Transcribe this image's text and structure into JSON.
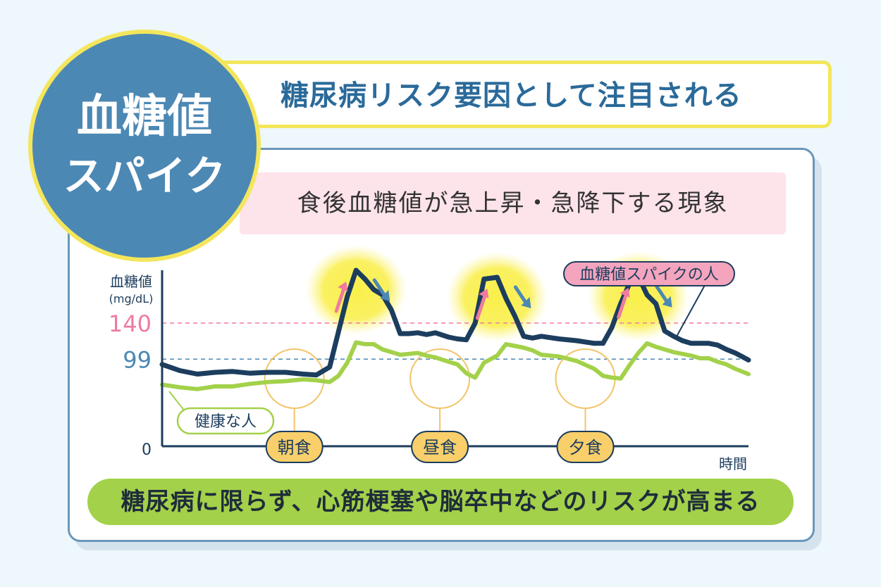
{
  "badge": {
    "line1": "血糖値",
    "line2": "スパイク"
  },
  "headline": "糖尿病リスク要因として注目される",
  "subtitle": "食後血糖値が急上昇・急降下する現象",
  "footer": "糖尿病に限らず、心筋梗塞や脳卒中などのリスクが高まる",
  "colors": {
    "spike_line": "#1c3d5e",
    "healthy_line": "#a3d14a",
    "threshold_140": "#f07aa0",
    "threshold_99": "#4c88b4",
    "highlight": "#f9f04a",
    "meal_circle": "#f2c469",
    "meal_label_bg": "#f8cf6a"
  },
  "chart_data": {
    "type": "line",
    "ylabel": "血糖値",
    "ylabel_unit": "(mg/dL)",
    "xlabel": "時間",
    "y_ticks": [
      {
        "value": 0,
        "label": "0"
      },
      {
        "value": 99,
        "label": "99"
      },
      {
        "value": 140,
        "label": "140"
      }
    ],
    "thresholds": [
      {
        "value": 140,
        "color": "#f07aa0"
      },
      {
        "value": 99,
        "color": "#4c88b4"
      }
    ],
    "meals": [
      {
        "label": "朝食",
        "x": 30
      },
      {
        "label": "昼食",
        "x": 63
      },
      {
        "label": "夕食",
        "x": 96
      }
    ],
    "series": [
      {
        "name": "血糖値スパイクの人",
        "color": "#1c3d5e",
        "x": [
          0,
          4,
          8,
          12,
          16,
          20,
          24,
          28,
          32,
          35,
          38,
          40,
          42,
          44,
          46,
          48,
          50,
          52,
          54,
          56,
          58,
          60,
          62,
          65,
          67,
          69,
          71,
          73,
          76,
          78,
          80,
          82,
          84,
          86,
          90,
          94,
          98,
          100,
          102,
          104,
          106,
          108,
          110,
          112,
          114,
          116,
          118,
          120,
          122,
          124,
          126,
          128,
          130,
          133
        ],
        "y": [
          93,
          86,
          82,
          84,
          85,
          83,
          84,
          84,
          82,
          81,
          90,
          130,
          170,
          200,
          190,
          178,
          172,
          155,
          128,
          128,
          129,
          127,
          129,
          124,
          122,
          121,
          140,
          190,
          192,
          168,
          148,
          125,
          123,
          125,
          122,
          120,
          117,
          117,
          135,
          162,
          185,
          193,
          172,
          162,
          131,
          125,
          120,
          117,
          117,
          117,
          115,
          110,
          106,
          98
        ]
      },
      {
        "name": "健康な人",
        "color": "#a3d14a",
        "x": [
          0,
          4,
          8,
          12,
          16,
          20,
          24,
          28,
          32,
          35,
          38,
          40,
          42,
          44,
          46,
          48,
          50,
          52,
          54,
          56,
          58,
          60,
          62,
          65,
          67,
          69,
          71,
          73,
          76,
          78,
          80,
          82,
          84,
          86,
          90,
          94,
          98,
          100,
          102,
          104,
          106,
          108,
          110,
          112,
          114,
          116,
          118,
          120,
          122,
          124,
          126,
          128,
          130,
          133
        ],
        "y": [
          70,
          67,
          65,
          68,
          68,
          71,
          73,
          74,
          76,
          75,
          73,
          80,
          95,
          118,
          116,
          116,
          110,
          107,
          104,
          105,
          106,
          103,
          101,
          96,
          93,
          83,
          78,
          95,
          103,
          116,
          114,
          112,
          109,
          104,
          102,
          97,
          88,
          80,
          78,
          77,
          92,
          106,
          117,
          113,
          110,
          107,
          105,
          103,
          100,
          100,
          96,
          93,
          88,
          82
        ]
      }
    ]
  }
}
